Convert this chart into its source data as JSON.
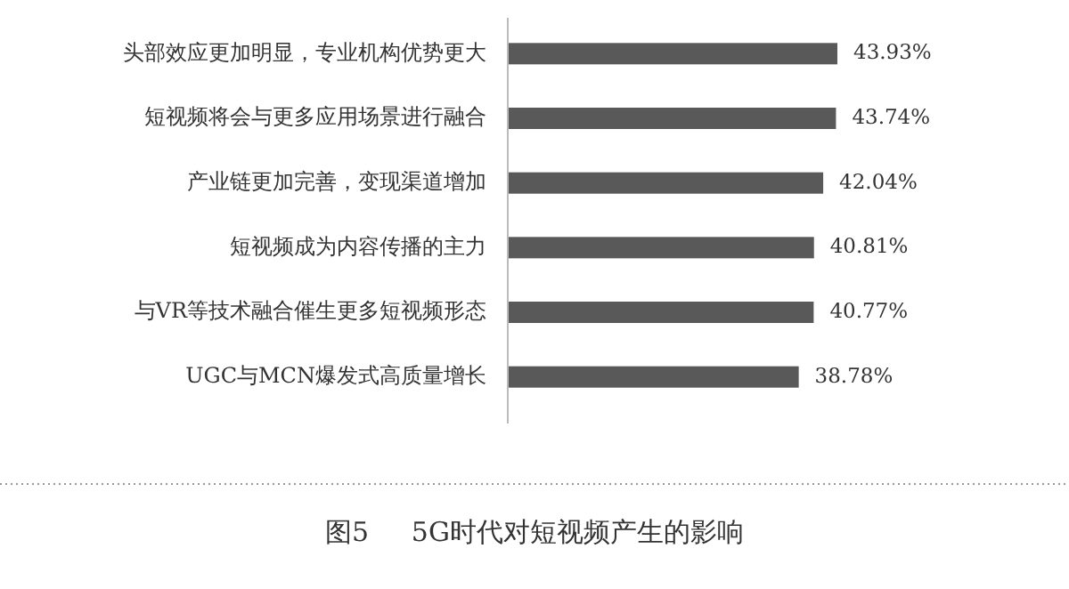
{
  "chart_data": {
    "type": "bar",
    "orientation": "horizontal",
    "title": "图5     5G时代对短视频产生的影响",
    "categories": [
      "头部效应更加明显，专业机构优势更大",
      "短视频将会与更多应用场景进行融合",
      "产业链更加完善，变现渠道增加",
      "短视频成为内容传播的主力",
      "与VR等技术融合催生更多短视频形态",
      "UGC与MCN爆发式高质量增长"
    ],
    "values": [
      43.93,
      43.74,
      42.04,
      40.81,
      40.77,
      38.78
    ],
    "value_labels": [
      "43.93%",
      "43.74%",
      "42.04%",
      "40.81%",
      "40.77%",
      "38.78%"
    ],
    "color": "#595959"
  }
}
